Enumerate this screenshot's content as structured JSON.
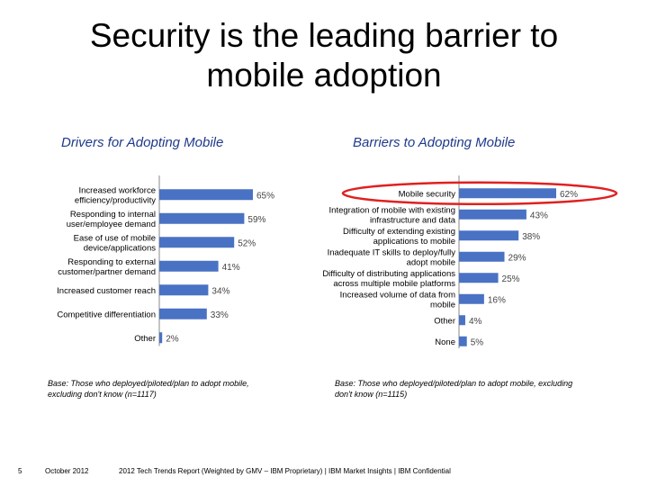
{
  "slide": {
    "title_line1": "Security is the leading barrier to",
    "title_line2": "mobile adoption",
    "page_number": "5",
    "date": "October 2012",
    "report": "2012 Tech Trends Report (Weighted by GMV – IBM Proprietary) | IBM Market Insights | IBM Confidential"
  },
  "colors": {
    "bar": "#4a72c4",
    "highlight_ellipse": "#e02020",
    "heading": "#1f3a8a"
  },
  "chart_data": [
    {
      "type": "bar",
      "orientation": "horizontal",
      "title": "Drivers for Adopting Mobile",
      "categories": [
        [
          "Increased workforce",
          "efficiency/productivity"
        ],
        [
          "Responding to internal",
          "user/employee demand"
        ],
        [
          "Ease of use of mobile",
          "device/applications"
        ],
        [
          "Responding to external",
          "customer/partner demand"
        ],
        [
          "Increased customer reach"
        ],
        [
          "Competitive differentiation"
        ],
        [
          "Other"
        ]
      ],
      "values": [
        65,
        59,
        52,
        41,
        34,
        33,
        2
      ],
      "value_labels": [
        "65%",
        "59%",
        "52%",
        "41%",
        "34%",
        "33%",
        "2%"
      ],
      "unit": "%",
      "xlim": [
        0,
        65
      ],
      "note": "Base: Those who deployed/piloted/plan to adopt mobile, excluding don't know (n=1117)"
    },
    {
      "type": "bar",
      "orientation": "horizontal",
      "title": "Barriers to Adopting Mobile",
      "categories": [
        [
          "Mobile security"
        ],
        [
          "Integration of mobile with existing",
          "infrastructure and data"
        ],
        [
          "Difficulty of extending existing",
          "applications to mobile"
        ],
        [
          "Inadequate IT skills to deploy/fully",
          "adopt mobile"
        ],
        [
          "Difficulty of distributing applications",
          "across multiple mobile platforms"
        ],
        [
          "Increased volume of data from",
          "mobile"
        ],
        [
          "Other"
        ],
        [
          "None"
        ]
      ],
      "values": [
        62,
        43,
        38,
        29,
        25,
        16,
        4,
        5
      ],
      "value_labels": [
        "62%",
        "43%",
        "38%",
        "29%",
        "25%",
        "16%",
        "4%",
        "5%"
      ],
      "unit": "%",
      "xlim": [
        0,
        62
      ],
      "highlight_index": 0,
      "note": "Base: Those who deployed/piloted/plan to adopt mobile, excluding don't know (n=1115)"
    }
  ]
}
